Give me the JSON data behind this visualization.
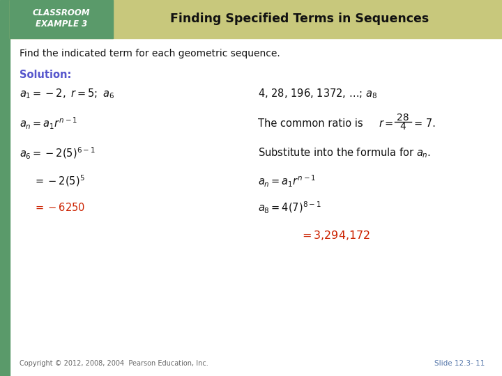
{
  "bg_color": "#ffffff",
  "left_bar_color": "#5a9a6a",
  "header_bg_color": "#c8c87a",
  "header_dark_color": "#6aaa6a",
  "header_label_line1": "CLASSROOM",
  "header_label_line2": "EXAMPLE 3",
  "header_title": "Finding Specified Terms in Sequences",
  "subtitle": "Find the indicated term for each geometric sequence.",
  "solution_label": "Solution:",
  "solution_color": "#5555cc",
  "red_color": "#cc2200",
  "black_color": "#111111",
  "copyright": "Copyright © 2012, 2008, 2004  Pearson Education, Inc.",
  "slide_label": "Slide 12.3- 11",
  "slide_color": "#5577aa"
}
